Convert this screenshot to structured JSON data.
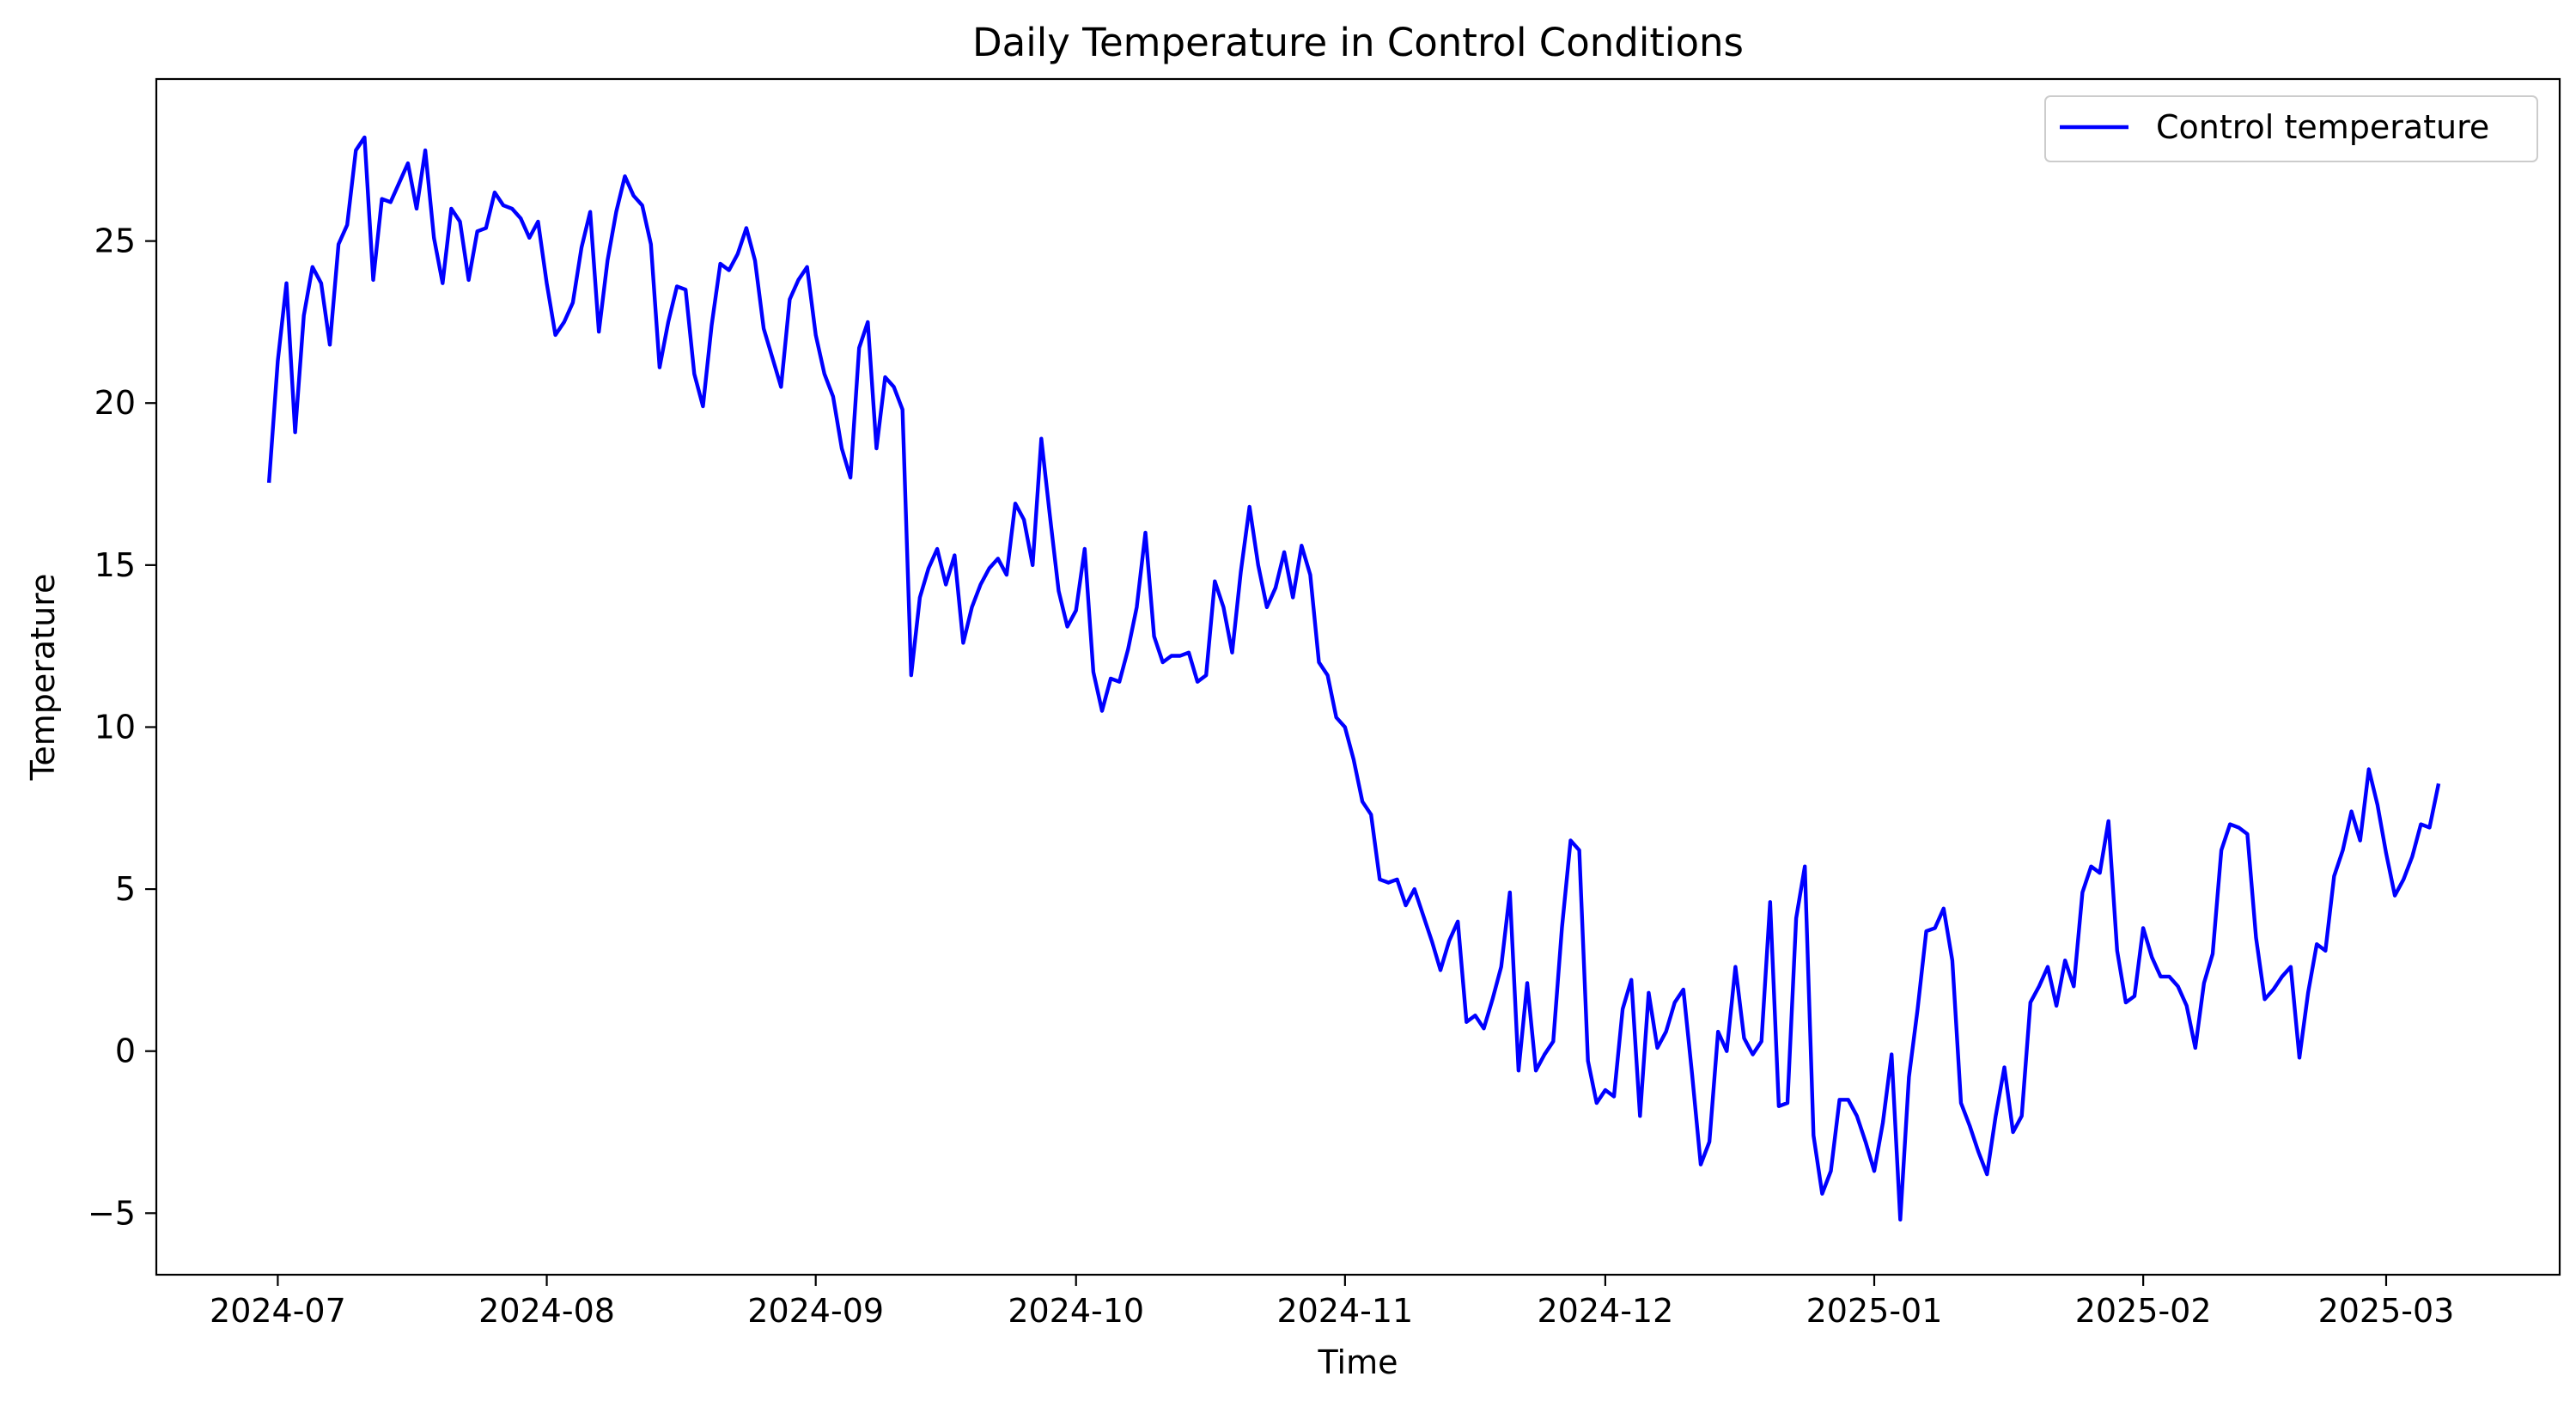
{
  "chart_data": {
    "type": "line",
    "title": "Daily Temperature in Control Conditions",
    "xlabel": "Time",
    "ylabel": "Temperature",
    "x_start": "2024-06-30",
    "x_end": "2025-03-07",
    "xlim": [
      "2024-06-17",
      "2025-03-21"
    ],
    "ylim": [
      -6.9,
      30
    ],
    "x_ticks": [
      "2024-07",
      "2024-08",
      "2024-09",
      "2024-10",
      "2024-11",
      "2024-12",
      "2025-01",
      "2025-02",
      "2025-03"
    ],
    "y_ticks": [
      -5,
      0,
      5,
      10,
      15,
      20,
      25
    ],
    "y_tick_labels": [
      "−5",
      "0",
      "5",
      "10",
      "15",
      "20",
      "25"
    ],
    "legend_position": "top-right",
    "grid": false,
    "series": [
      {
        "name": "Control temperature",
        "color": "#0000ff",
        "values": [
          17.6,
          21.3,
          23.7,
          19.1,
          22.7,
          24.2,
          23.7,
          21.8,
          24.9,
          25.5,
          27.8,
          28.2,
          23.8,
          26.3,
          26.2,
          26.8,
          27.4,
          26.0,
          27.8,
          25.1,
          23.7,
          26.0,
          25.6,
          23.8,
          25.3,
          25.4,
          26.5,
          26.1,
          26.0,
          25.7,
          25.1,
          25.6,
          23.7,
          22.1,
          22.5,
          23.1,
          24.8,
          25.9,
          22.2,
          24.4,
          25.9,
          27.0,
          26.4,
          26.1,
          24.9,
          21.1,
          22.5,
          23.6,
          23.5,
          20.9,
          19.9,
          22.4,
          24.3,
          24.1,
          24.6,
          25.4,
          24.4,
          22.3,
          21.4,
          20.5,
          23.2,
          23.8,
          24.2,
          22.1,
          20.9,
          20.2,
          18.6,
          17.7,
          21.7,
          22.5,
          18.6,
          20.8,
          20.5,
          19.8,
          11.6,
          14.0,
          14.9,
          15.5,
          14.4,
          15.3,
          12.6,
          13.7,
          14.4,
          14.9,
          15.2,
          14.7,
          16.9,
          16.4,
          15.0,
          18.9,
          16.5,
          14.2,
          13.1,
          13.6,
          15.5,
          11.7,
          10.5,
          11.5,
          11.4,
          12.4,
          13.7,
          16.0,
          12.8,
          12.0,
          12.2,
          12.2,
          12.3,
          11.4,
          11.6,
          14.5,
          13.7,
          12.3,
          14.8,
          16.8,
          15.0,
          13.7,
          14.3,
          15.4,
          14.0,
          15.6,
          14.7,
          12.0,
          11.6,
          10.3,
          10.0,
          9.0,
          7.7,
          7.3,
          5.3,
          5.2,
          5.3,
          4.5,
          5.0,
          4.2,
          3.4,
          2.5,
          3.4,
          4.0,
          0.9,
          1.1,
          0.7,
          1.6,
          2.6,
          4.9,
          -0.6,
          2.1,
          -0.6,
          -0.1,
          0.3,
          3.8,
          6.5,
          6.2,
          -0.3,
          -1.6,
          -1.2,
          -1.4,
          1.3,
          2.2,
          -2.0,
          1.8,
          0.1,
          0.6,
          1.5,
          1.9,
          -0.7,
          -3.5,
          -2.8,
          0.6,
          0.0,
          2.6,
          0.4,
          -0.1,
          0.3,
          4.6,
          -1.7,
          -1.6,
          4.1,
          5.7,
          -2.6,
          -4.4,
          -3.7,
          -1.5,
          -1.5,
          -2.0,
          -2.8,
          -3.7,
          -2.2,
          -0.1,
          -5.2,
          -0.8,
          1.3,
          3.7,
          3.8,
          4.4,
          2.8,
          -1.6,
          -2.3,
          -3.1,
          -3.8,
          -2.0,
          -0.5,
          -2.5,
          -2.0,
          1.5,
          2.0,
          2.6,
          1.4,
          2.8,
          2.0,
          4.9,
          5.7,
          5.5,
          7.1,
          3.1,
          1.5,
          1.7,
          3.8,
          2.9,
          2.3,
          2.3,
          2.0,
          1.4,
          0.1,
          2.1,
          3.0,
          6.2,
          7.0,
          6.9,
          6.7,
          3.5,
          1.6,
          1.9,
          2.3,
          2.6,
          -0.2,
          1.8,
          3.3,
          3.1,
          5.4,
          6.2,
          7.4,
          6.5,
          8.7,
          7.6,
          6.1,
          4.8,
          5.3,
          6.0,
          7.0,
          6.9,
          8.2
        ]
      }
    ]
  }
}
